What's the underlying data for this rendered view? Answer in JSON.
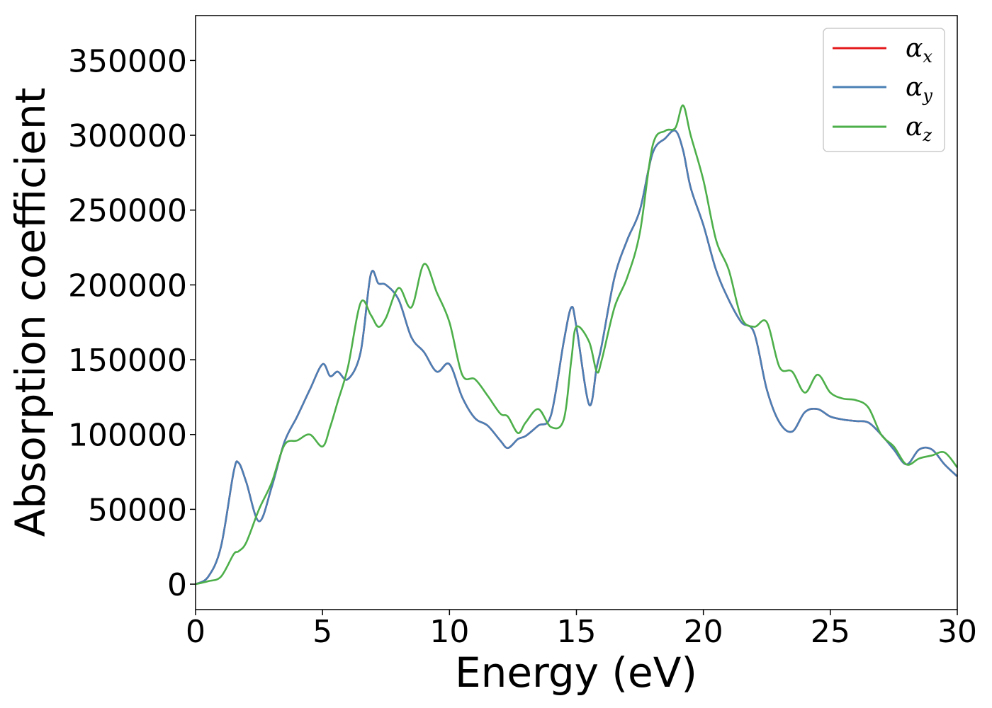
{
  "chart_data": {
    "type": "line",
    "xlabel": "Energy (eV)",
    "ylabel": "Absorption coefficient",
    "xlim": [
      0,
      30
    ],
    "ylim": [
      -17000,
      380000
    ],
    "xticks": [
      0,
      5,
      10,
      15,
      20,
      25,
      30
    ],
    "yticks": [
      0,
      50000,
      100000,
      150000,
      200000,
      250000,
      300000,
      350000
    ],
    "grid": false,
    "legend_position": "top-right",
    "x": [
      0,
      0.5,
      1,
      1.5,
      1.7,
      2,
      2.5,
      3,
      3.5,
      4,
      4.5,
      5,
      5.3,
      5.6,
      6,
      6.5,
      6.9,
      7.2,
      7.5,
      8,
      8.5,
      9,
      9.5,
      10,
      10.5,
      11,
      11.5,
      12,
      12.3,
      12.7,
      13,
      13.5,
      14,
      14.5,
      14.8,
      15,
      15.5,
      15.8,
      16,
      16.5,
      17,
      17.5,
      18,
      18.5,
      18.9,
      19.2,
      19.5,
      20,
      20.5,
      21,
      21.5,
      22,
      22.5,
      23,
      23.5,
      24,
      24.5,
      25,
      25.5,
      26,
      26.5,
      27,
      27.5,
      28,
      28.5,
      29,
      29.5,
      30
    ],
    "series": [
      {
        "name": "α_x",
        "color": "#e41a1c",
        "values": [
          0,
          5000,
          25000,
          75000,
          81000,
          68000,
          42000,
          65000,
          95000,
          112000,
          130000,
          147000,
          139000,
          142000,
          137000,
          155000,
          207000,
          201000,
          200000,
          190000,
          165000,
          155000,
          142000,
          147000,
          125000,
          111000,
          106000,
          96000,
          91000,
          97000,
          99000,
          106000,
          113000,
          162000,
          185000,
          172000,
          120000,
          145000,
          160000,
          205000,
          230000,
          250000,
          288000,
          298000,
          303000,
          290000,
          265000,
          240000,
          210000,
          190000,
          175000,
          168000,
          130000,
          108000,
          102000,
          115000,
          117000,
          112000,
          110000,
          109000,
          108000,
          100000,
          90000,
          80000,
          90000,
          90000,
          80000,
          72000
        ]
      },
      {
        "name": "α_y",
        "color": "#4a7fb5",
        "values": [
          0,
          5000,
          25000,
          75000,
          81000,
          68000,
          42000,
          65000,
          95000,
          112000,
          130000,
          147000,
          139000,
          142000,
          137000,
          155000,
          207000,
          201000,
          200000,
          190000,
          165000,
          155000,
          142000,
          147000,
          125000,
          111000,
          106000,
          96000,
          91000,
          97000,
          99000,
          106000,
          113000,
          162000,
          185000,
          172000,
          120000,
          145000,
          160000,
          205000,
          230000,
          250000,
          288000,
          298000,
          303000,
          290000,
          265000,
          240000,
          210000,
          190000,
          175000,
          168000,
          130000,
          108000,
          102000,
          115000,
          117000,
          112000,
          110000,
          109000,
          108000,
          100000,
          90000,
          80000,
          90000,
          90000,
          80000,
          72000
        ]
      },
      {
        "name": "α_z",
        "color": "#4daf4a",
        "values": [
          0,
          2000,
          5000,
          20000,
          22000,
          28000,
          50000,
          68000,
          93000,
          96000,
          100000,
          92000,
          105000,
          122000,
          145000,
          188000,
          180000,
          172000,
          178000,
          198000,
          185000,
          214000,
          195000,
          175000,
          140000,
          137000,
          126000,
          114000,
          112000,
          101000,
          108000,
          117000,
          105000,
          110000,
          150000,
          172000,
          162000,
          142000,
          150000,
          185000,
          205000,
          235000,
          293000,
          303000,
          305000,
          320000,
          300000,
          270000,
          230000,
          210000,
          178000,
          172000,
          175000,
          145000,
          142000,
          128000,
          140000,
          128000,
          124000,
          123000,
          118000,
          100000,
          92000,
          80000,
          84000,
          86000,
          88000,
          78000
        ]
      }
    ]
  },
  "legend": {
    "entries": [
      {
        "base": "α",
        "sub": "x"
      },
      {
        "base": "α",
        "sub": "y"
      },
      {
        "base": "α",
        "sub": "z"
      }
    ]
  }
}
